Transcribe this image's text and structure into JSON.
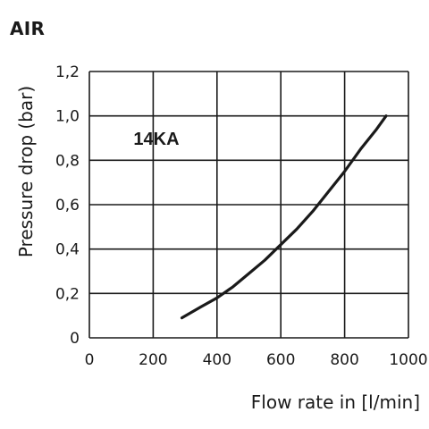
{
  "page": {
    "title": "AIR"
  },
  "chart_data": {
    "type": "line",
    "title": "AIR",
    "xlabel": "Flow rate in [l/min]",
    "ylabel": "Pressure drop (bar)",
    "xlim": [
      0,
      1000
    ],
    "ylim": [
      0,
      1.2
    ],
    "x_ticks": [
      "0",
      "200",
      "400",
      "600",
      "800",
      "1000"
    ],
    "y_ticks": [
      "0",
      "0,2",
      "0,4",
      "0,6",
      "0,8",
      "1,0",
      "1,2"
    ],
    "x_tick_values": [
      0,
      200,
      400,
      600,
      800,
      1000
    ],
    "y_tick_values": [
      0,
      0.2,
      0.4,
      0.6,
      0.8,
      1.0,
      1.2
    ],
    "grid": true,
    "series": [
      {
        "name": "14KA",
        "color": "#1a1a1a",
        "x": [
          290,
          350,
          400,
          450,
          500,
          550,
          600,
          650,
          700,
          750,
          800,
          850,
          900,
          930
        ],
        "y": [
          0.09,
          0.14,
          0.18,
          0.23,
          0.29,
          0.35,
          0.42,
          0.49,
          0.57,
          0.66,
          0.75,
          0.85,
          0.94,
          1.0
        ]
      }
    ],
    "annotations": [
      {
        "text": "14KA",
        "x": 210,
        "y": 0.87
      }
    ]
  }
}
